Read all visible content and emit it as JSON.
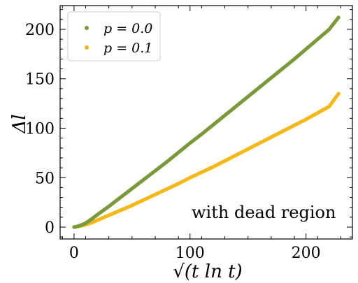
{
  "chart_data": {
    "type": "scatter",
    "title": "",
    "xlabel": "√(t ln t)",
    "ylabel": "Δl",
    "xlim": [
      -12,
      240
    ],
    "ylim": [
      -12,
      224
    ],
    "x_ticks": [
      0,
      100,
      200
    ],
    "y_ticks": [
      0,
      50,
      100,
      150,
      200
    ],
    "grid": false,
    "legend_position": "top-left",
    "annotation": "with dead region",
    "series": [
      {
        "name": "p = 0.0",
        "color": "#7a9a3a",
        "points": [
          [
            0,
            0
          ],
          [
            5,
            1.5
          ],
          [
            10,
            4
          ],
          [
            15,
            8
          ],
          [
            20,
            12.5
          ],
          [
            30,
            21
          ],
          [
            40,
            30
          ],
          [
            50,
            39
          ],
          [
            60,
            48
          ],
          [
            70,
            57
          ],
          [
            80,
            66
          ],
          [
            90,
            75.5
          ],
          [
            100,
            85
          ],
          [
            110,
            94
          ],
          [
            120,
            103.5
          ],
          [
            130,
            113
          ],
          [
            140,
            122.5
          ],
          [
            150,
            132
          ],
          [
            160,
            141.5
          ],
          [
            170,
            151
          ],
          [
            180,
            160.5
          ],
          [
            190,
            170
          ],
          [
            200,
            180
          ],
          [
            210,
            190
          ],
          [
            220,
            200
          ],
          [
            228,
            212
          ]
        ]
      },
      {
        "name": "p = 0.1",
        "color": "#f5b818",
        "points": [
          [
            0,
            0
          ],
          [
            5,
            1
          ],
          [
            10,
            2.5
          ],
          [
            15,
            4.5
          ],
          [
            20,
            7
          ],
          [
            30,
            12
          ],
          [
            40,
            17
          ],
          [
            50,
            22
          ],
          [
            60,
            27.5
          ],
          [
            70,
            33
          ],
          [
            80,
            38.5
          ],
          [
            90,
            44
          ],
          [
            100,
            50
          ],
          [
            110,
            55.5
          ],
          [
            120,
            61
          ],
          [
            130,
            67
          ],
          [
            140,
            73
          ],
          [
            150,
            79
          ],
          [
            160,
            85
          ],
          [
            170,
            91
          ],
          [
            180,
            97
          ],
          [
            190,
            103
          ],
          [
            200,
            109
          ],
          [
            210,
            115.5
          ],
          [
            220,
            122
          ],
          [
            228,
            135
          ]
        ]
      }
    ]
  }
}
